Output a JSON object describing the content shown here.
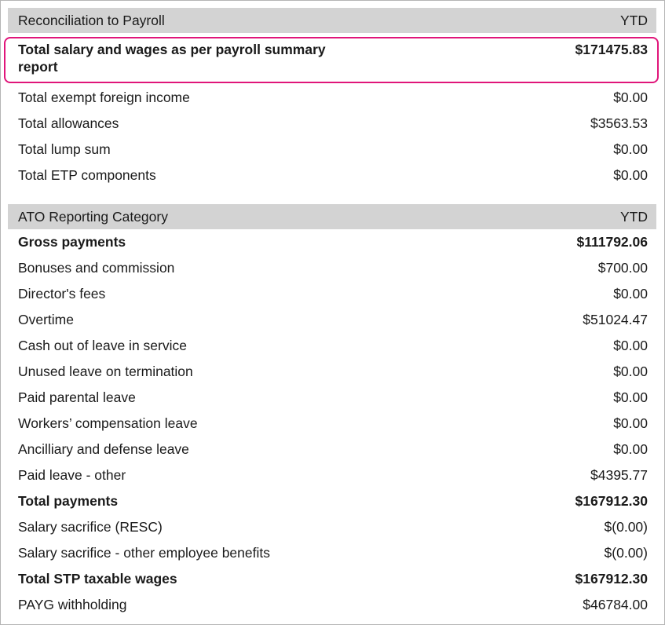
{
  "sections": [
    {
      "title": "Reconciliation to Payroll",
      "column": "YTD",
      "rows": [
        {
          "label": "Total salary and wages as per payroll summary report",
          "value": "$171475.83",
          "bold": true,
          "highlighted": true
        },
        {
          "label": "Total exempt foreign income",
          "value": "$0.00"
        },
        {
          "label": "Total allowances",
          "value": "$3563.53"
        },
        {
          "label": "Total lump sum",
          "value": "$0.00"
        },
        {
          "label": "Total ETP components",
          "value": "$0.00"
        }
      ]
    },
    {
      "title": "ATO Reporting Category",
      "column": "YTD",
      "rows": [
        {
          "label": "Gross payments",
          "value": "$111792.06",
          "bold": true
        },
        {
          "label": "Bonuses and commission",
          "value": "$700.00"
        },
        {
          "label": "Director's fees",
          "value": "$0.00"
        },
        {
          "label": "Overtime",
          "value": "$51024.47"
        },
        {
          "label": "Cash out of leave in service",
          "value": "$0.00"
        },
        {
          "label": "Unused leave on termination",
          "value": "$0.00"
        },
        {
          "label": "Paid parental leave",
          "value": "$0.00"
        },
        {
          "label": "Workers’ compensation leave",
          "value": "$0.00"
        },
        {
          "label": "Ancilliary and defense leave",
          "value": "$0.00"
        },
        {
          "label": "Paid leave - other",
          "value": "$4395.77"
        },
        {
          "label": "Total payments",
          "value": "$167912.30",
          "bold": true
        },
        {
          "label": "Salary sacrifice (RESC)",
          "value": "$(0.00)"
        },
        {
          "label": "Salary sacrifice - other employee benefits",
          "value": "$(0.00)"
        },
        {
          "label": "Total STP taxable wages",
          "value": "$167912.30",
          "bold": true
        },
        {
          "label": "PAYG withholding",
          "value": "$46784.00"
        }
      ]
    }
  ]
}
